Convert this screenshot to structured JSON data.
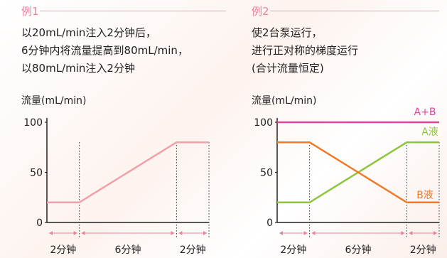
{
  "examples": [
    {
      "label": "例1",
      "lines": [
        "以20mL/min注入2分钟后，",
        "6分钟内将流量提高到80mL/min，",
        "以80mL/min注入2分钟"
      ]
    },
    {
      "label": "例2",
      "lines": [
        "使2台泵运行，",
        "进行正对称的梯度运行",
        "(合计流量恒定)"
      ]
    }
  ],
  "chart_data": [
    {
      "type": "line",
      "ylabel": "流量(mL/min)",
      "yticks": [
        0,
        50,
        100
      ],
      "ylim": [
        0,
        100
      ],
      "xlim": [
        0,
        10
      ],
      "phases": [
        {
          "label": "2分钟",
          "start": 0,
          "end": 2
        },
        {
          "label": "6分钟",
          "start": 2,
          "end": 8
        },
        {
          "label": "2分钟",
          "start": 8,
          "end": 10
        }
      ],
      "phase_boundaries": [
        2,
        8
      ],
      "series": [
        {
          "color": "#f0a0a8",
          "x": [
            0,
            2,
            8,
            10
          ],
          "y": [
            20,
            20,
            80,
            80
          ]
        }
      ]
    },
    {
      "type": "line",
      "ylabel": "流量(mL/min)",
      "yticks": [
        0,
        50,
        100
      ],
      "ylim": [
        0,
        100
      ],
      "xlim": [
        0,
        10
      ],
      "phases": [
        {
          "label": "2分钟",
          "start": 0,
          "end": 2
        },
        {
          "label": "6分钟",
          "start": 2,
          "end": 8
        },
        {
          "label": "2分钟",
          "start": 8,
          "end": 10
        }
      ],
      "phase_boundaries": [
        2,
        8
      ],
      "series": [
        {
          "name": "A+B",
          "color": "#e0449a",
          "x": [
            0,
            10
          ],
          "y": [
            100,
            100
          ]
        },
        {
          "name": "A液",
          "color": "#8cc63f",
          "x": [
            0,
            2,
            8,
            10
          ],
          "y": [
            20,
            20,
            80,
            80
          ]
        },
        {
          "name": "B液",
          "color": "#ee7a2a",
          "x": [
            0,
            2,
            8,
            10
          ],
          "y": [
            80,
            80,
            20,
            20
          ]
        }
      ]
    }
  ]
}
